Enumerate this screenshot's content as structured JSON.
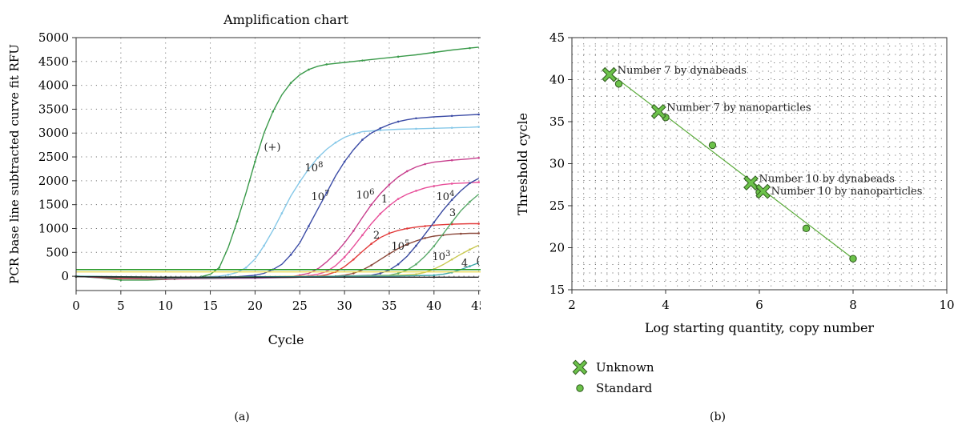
{
  "chart_data": [
    {
      "type": "line",
      "panel_label": "(a)",
      "title": "Amplification chart",
      "xlabel": "Cycle",
      "ylabel": "PCR base line subtracted curve fit RFU",
      "xlim": [
        0,
        47
      ],
      "ylim": [
        -300,
        5000
      ],
      "xticks": [
        0,
        5,
        10,
        15,
        20,
        25,
        30,
        35,
        40,
        45
      ],
      "yticks": [
        0,
        500,
        1000,
        1500,
        2000,
        2500,
        3000,
        3500,
        4000,
        4500,
        5000
      ],
      "grid": "dotted",
      "threshold": 140,
      "colors": {
        "threshold": "#2a9a2a",
        "threshold_line2": "#e8d84a",
        "frame": "#333333"
      },
      "series": [
        {
          "label": "(+)",
          "color": "#3a9a4a",
          "x": [
            0,
            3,
            5,
            8,
            11,
            13,
            14,
            15,
            16,
            17,
            18,
            19,
            20,
            21,
            22,
            23,
            24,
            25,
            26,
            27,
            28,
            30,
            32,
            34,
            36,
            38,
            40,
            42,
            44,
            45
          ],
          "y": [
            0,
            -40,
            -80,
            -80,
            -60,
            -40,
            -10,
            40,
            180,
            600,
            1150,
            1750,
            2400,
            3000,
            3450,
            3800,
            4050,
            4220,
            4330,
            4400,
            4440,
            4480,
            4520,
            4560,
            4600,
            4640,
            4690,
            4740,
            4780,
            4800
          ]
        },
        {
          "label": "10^8",
          "color": "#86c8e8",
          "x": [
            0,
            3,
            6,
            10,
            14,
            16,
            17,
            18,
            19,
            20,
            21,
            22,
            23,
            24,
            25,
            26,
            27,
            28,
            29,
            30,
            31,
            32,
            34,
            36,
            38,
            40,
            42,
            44,
            45
          ],
          "y": [
            0,
            -20,
            -30,
            -30,
            -20,
            0,
            30,
            80,
            180,
            360,
            640,
            960,
            1320,
            1680,
            1980,
            2250,
            2480,
            2660,
            2800,
            2910,
            2980,
            3030,
            3060,
            3080,
            3090,
            3100,
            3110,
            3120,
            3130
          ]
        },
        {
          "label": "10^7",
          "color": "#3c4ca6",
          "x": [
            0,
            4,
            8,
            12,
            16,
            18,
            20,
            21,
            22,
            23,
            24,
            25,
            26,
            27,
            28,
            29,
            30,
            31,
            32,
            33,
            34,
            35,
            36,
            37,
            38,
            40,
            42,
            44,
            45
          ],
          "y": [
            0,
            -40,
            -40,
            -30,
            -20,
            -10,
            20,
            60,
            140,
            250,
            450,
            700,
            1050,
            1400,
            1750,
            2100,
            2400,
            2650,
            2860,
            3000,
            3100,
            3180,
            3240,
            3280,
            3310,
            3340,
            3360,
            3380,
            3390
          ]
        },
        {
          "label": "10^6",
          "color": "#c8408e",
          "x": [
            0,
            5,
            10,
            15,
            20,
            24,
            25,
            26,
            27,
            28,
            29,
            30,
            31,
            32,
            33,
            34,
            35,
            36,
            37,
            38,
            39,
            40,
            42,
            44,
            45
          ],
          "y": [
            0,
            -40,
            -50,
            -40,
            -30,
            -10,
            20,
            60,
            150,
            300,
            480,
            700,
            950,
            1230,
            1500,
            1730,
            1920,
            2080,
            2200,
            2290,
            2350,
            2390,
            2430,
            2460,
            2480
          ]
        },
        {
          "label": "1",
          "color": "#e8509a",
          "x": [
            0,
            5,
            10,
            15,
            20,
            25,
            26,
            27,
            28,
            29,
            30,
            31,
            32,
            33,
            34,
            35,
            36,
            37,
            38,
            39,
            40,
            41,
            42,
            44,
            45
          ],
          "y": [
            0,
            -50,
            -60,
            -50,
            -40,
            -20,
            10,
            40,
            100,
            220,
            400,
            620,
            860,
            1100,
            1310,
            1480,
            1620,
            1720,
            1790,
            1850,
            1890,
            1920,
            1940,
            1960,
            1970
          ]
        },
        {
          "label": "2",
          "color": "#e23a3a",
          "x": [
            0,
            5,
            10,
            15,
            20,
            25,
            27,
            28,
            29,
            30,
            31,
            32,
            33,
            34,
            35,
            36,
            37,
            38,
            39,
            40,
            42,
            44,
            45
          ],
          "y": [
            0,
            -40,
            -50,
            -40,
            -30,
            -20,
            0,
            30,
            90,
            200,
            350,
            520,
            680,
            810,
            900,
            960,
            1000,
            1030,
            1050,
            1070,
            1090,
            1100,
            1100
          ]
        },
        {
          "label": "10^5",
          "color": "#8c4a3c",
          "x": [
            0,
            5,
            10,
            15,
            20,
            25,
            29,
            30,
            31,
            32,
            33,
            34,
            35,
            36,
            37,
            38,
            39,
            40,
            41,
            42,
            43,
            44,
            45
          ],
          "y": [
            0,
            -30,
            -40,
            -40,
            -30,
            -20,
            0,
            20,
            60,
            130,
            230,
            350,
            470,
            580,
            670,
            740,
            800,
            840,
            860,
            880,
            890,
            900,
            900
          ]
        },
        {
          "label": "10^4",
          "color": "#3a4aa0",
          "x": [
            0,
            5,
            10,
            15,
            20,
            25,
            30,
            33,
            34,
            35,
            36,
            37,
            38,
            39,
            40,
            41,
            42,
            43,
            44,
            45
          ],
          "y": [
            0,
            -20,
            -40,
            -40,
            -30,
            -20,
            0,
            20,
            60,
            130,
            250,
            420,
            640,
            880,
            1130,
            1380,
            1600,
            1790,
            1950,
            2050
          ]
        },
        {
          "label": "3",
          "color": "#5aaa6a",
          "x": [
            0,
            5,
            10,
            15,
            20,
            25,
            30,
            35,
            36,
            37,
            38,
            39,
            40,
            41,
            42,
            43,
            44,
            45
          ],
          "y": [
            0,
            -20,
            -30,
            -30,
            -20,
            -10,
            0,
            20,
            60,
            130,
            250,
            420,
            630,
            880,
            1130,
            1370,
            1560,
            1720
          ]
        },
        {
          "label": "10^3",
          "color": "#c8c850",
          "x": [
            0,
            5,
            10,
            15,
            20,
            25,
            30,
            35,
            38,
            39,
            40,
            41,
            42,
            43,
            44,
            45
          ],
          "y": [
            0,
            -10,
            -20,
            -20,
            -10,
            0,
            0,
            10,
            40,
            80,
            150,
            240,
            350,
            460,
            560,
            650
          ]
        },
        {
          "label": "4",
          "color": "#3aa6a6",
          "x": [
            0,
            5,
            10,
            15,
            20,
            25,
            30,
            35,
            40,
            41,
            42,
            43,
            44,
            45
          ],
          "y": [
            0,
            -10,
            -20,
            -20,
            -10,
            -10,
            0,
            0,
            20,
            40,
            80,
            140,
            210,
            280
          ]
        },
        {
          "label": "(−)",
          "color": "#222222",
          "x": [
            0,
            5,
            10,
            15,
            20,
            25,
            30,
            35,
            40,
            45
          ],
          "y": [
            -10,
            -15,
            -20,
            -20,
            -20,
            -20,
            -20,
            -20,
            -20,
            -20
          ]
        }
      ],
      "annotations": [
        "(+)",
        "10^8",
        "10^7",
        "10^6",
        "1",
        "10^4",
        "3",
        "2",
        "10^5",
        "10^3",
        "4",
        "(−)"
      ]
    },
    {
      "type": "scatter",
      "panel_label": "(b)",
      "title": "",
      "xlabel": "Log starting quantity, copy number",
      "ylabel": "Threshold cycle",
      "xlim": [
        2,
        10
      ],
      "ylim": [
        15,
        45
      ],
      "xticks": [
        2,
        4,
        6,
        8,
        10
      ],
      "yticks": [
        15,
        20,
        25,
        30,
        35,
        40,
        45
      ],
      "grid": "dotted",
      "legend_position": "bottom-left",
      "colors": {
        "marker_fill": "#6cc24a",
        "marker_edge": "#2f5a1e",
        "fit_line": "#5aaa3a"
      },
      "fit_line": {
        "x": [
          2.8,
          8.0
        ],
        "y": [
          40.8,
          18.7
        ]
      },
      "series": [
        {
          "name": "Unknown",
          "marker": "x-square",
          "points": [
            {
              "x": 2.8,
              "y": 40.6,
              "label": "Number 7 by dynabeads"
            },
            {
              "x": 3.85,
              "y": 36.2,
              "label": "Number 7 by nanoparticles"
            },
            {
              "x": 5.82,
              "y": 27.7,
              "label": "Number 10 by dynabeads"
            },
            {
              "x": 6.08,
              "y": 26.7,
              "label": "Number 10 by nanoparticles"
            }
          ]
        },
        {
          "name": "Standard",
          "marker": "circle",
          "points": [
            {
              "x": 3.0,
              "y": 39.5
            },
            {
              "x": 4.0,
              "y": 35.5
            },
            {
              "x": 5.0,
              "y": 32.2
            },
            {
              "x": 6.0,
              "y": 26.6
            },
            {
              "x": 7.0,
              "y": 22.3
            },
            {
              "x": 8.0,
              "y": 18.7
            }
          ]
        }
      ]
    }
  ]
}
